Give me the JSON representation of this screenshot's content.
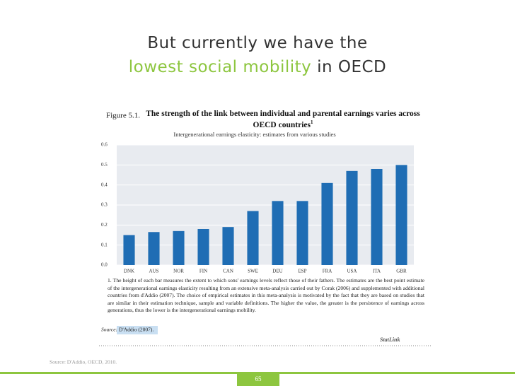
{
  "slide": {
    "title_line1": "But currently we have the",
    "title_highlight": "lowest social mobility",
    "title_rest": "in OECD",
    "source": "Source: D'Addio, OECD, 2010.",
    "page_number": "65"
  },
  "chart_data": {
    "type": "bar",
    "figure_label": "Figure 5.1.",
    "title": "The strength of the link between individual and parental earnings varies across OECD countries",
    "title_note": "1",
    "subtitle": "Intergenerational earnings elasticity: estimates from various studies",
    "categories": [
      "DNK",
      "AUS",
      "NOR",
      "FIN",
      "CAN",
      "SWE",
      "DEU",
      "ESP",
      "FRA",
      "USA",
      "ITA",
      "GBR"
    ],
    "values": [
      0.15,
      0.165,
      0.17,
      0.18,
      0.19,
      0.27,
      0.32,
      0.32,
      0.41,
      0.47,
      0.48,
      0.5
    ],
    "color": "#1f6db4",
    "ylim": [
      0,
      0.6
    ],
    "yticks": [
      {
        "value": 0,
        "label": "0.0"
      },
      0.1,
      0.2,
      0.3,
      0.4,
      0.5,
      0.6
    ],
    "grid": true,
    "note": "1. The height of each bar measures the extent to which sons' earnings levels reflect those of their fathers. The estimates are the best point estimate of the intergenerational earnings elasticity resulting from an extensive meta-analysis carried out by Corak (2006) and supplemented with additional countries from d'Addio (2007). The choice of empirical estimates in this meta-analysis is motivated by the fact that they are based on studies that are similar in their estimation technique, sample and variable definitions. The higher the value, the greater is the persistence of earnings across generations, thus the lower is the intergenerational earnings mobility.",
    "source_label": "Source:",
    "source": "D'Addio (2007).",
    "statlink": "StatLink"
  }
}
